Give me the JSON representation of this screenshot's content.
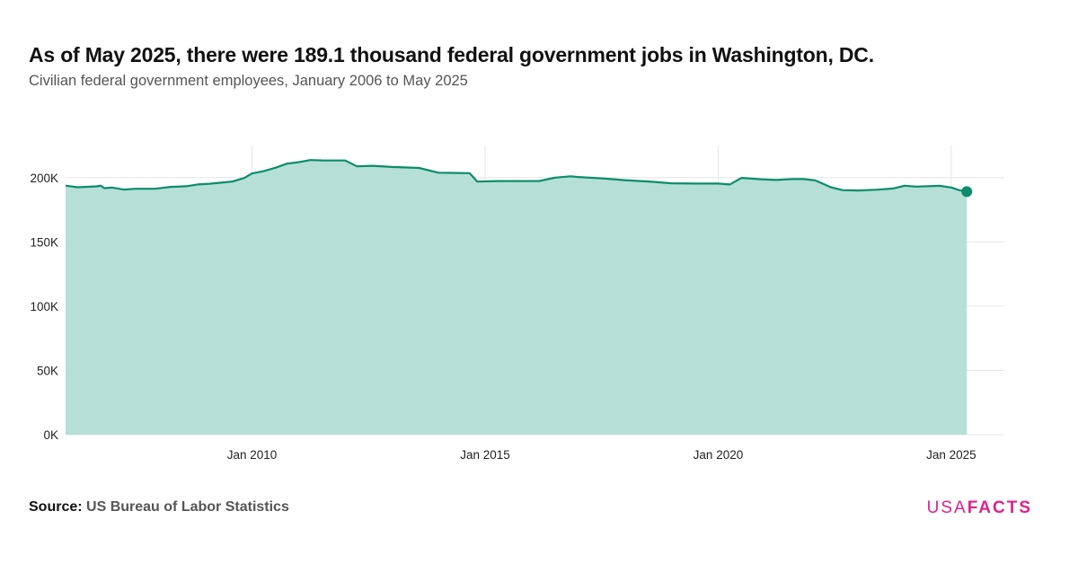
{
  "title": "As of May 2025, there were 189.1 thousand federal government jobs in Washington, DC.",
  "subtitle": "Civilian federal government employees, January 2006 to May 2025",
  "source": {
    "label": "Source:",
    "text": "US Bureau of Labor Statistics"
  },
  "logo": {
    "part1": "USA",
    "part2": "FACTS"
  },
  "colors": {
    "line": "#0b8c6b",
    "fill": "#b2ded4",
    "grid": "#e6e6e6",
    "logo": "#e0218a"
  },
  "chart_data": {
    "type": "area",
    "title": "As of May 2025, there were 189.1 thousand federal government jobs in Washington, DC.",
    "subtitle": "Civilian federal government employees, January 2006 to May 2025",
    "xlabel": "",
    "ylabel": "",
    "x_range": [
      "2006-01",
      "2025-05"
    ],
    "ylim": [
      0,
      225000
    ],
    "y_ticks": [
      0,
      50000,
      100000,
      150000,
      200000
    ],
    "y_tick_labels": [
      "0K",
      "50K",
      "100K",
      "150K",
      "200K"
    ],
    "x_ticks": [
      "2010-01",
      "2015-01",
      "2020-01",
      "2025-01"
    ],
    "x_tick_labels": [
      "Jan 2010",
      "Jan 2015",
      "Jan 2020",
      "Jan 2025"
    ],
    "grid": true,
    "highlight_last_point": true,
    "series": [
      {
        "points": [
          [
            "2006-01",
            193800
          ],
          [
            "2006-04",
            192500
          ],
          [
            "2006-09",
            193200
          ],
          [
            "2006-10",
            193800
          ],
          [
            "2006-11",
            191800
          ],
          [
            "2007-01",
            192200
          ],
          [
            "2007-04",
            190700
          ],
          [
            "2007-07",
            191300
          ],
          [
            "2007-12",
            191300
          ],
          [
            "2008-04",
            192800
          ],
          [
            "2008-08",
            193300
          ],
          [
            "2008-11",
            194700
          ],
          [
            "2009-02",
            195200
          ],
          [
            "2009-08",
            197000
          ],
          [
            "2009-11",
            199700
          ],
          [
            "2010-01",
            203300
          ],
          [
            "2010-04",
            205000
          ],
          [
            "2010-07",
            207700
          ],
          [
            "2010-10",
            210900
          ],
          [
            "2011-01",
            212000
          ],
          [
            "2011-04",
            213700
          ],
          [
            "2011-07",
            213400
          ],
          [
            "2011-11",
            213300
          ],
          [
            "2012-01",
            213300
          ],
          [
            "2012-04",
            208800
          ],
          [
            "2012-08",
            209200
          ],
          [
            "2013-01",
            208300
          ],
          [
            "2013-08",
            207500
          ],
          [
            "2014-01",
            203800
          ],
          [
            "2014-09",
            203500
          ],
          [
            "2014-11",
            196900
          ],
          [
            "2015-04",
            197300
          ],
          [
            "2016-03",
            197400
          ],
          [
            "2016-07",
            200000
          ],
          [
            "2016-11",
            201000
          ],
          [
            "2017-01",
            200500
          ],
          [
            "2017-08",
            199200
          ],
          [
            "2018-01",
            198000
          ],
          [
            "2018-08",
            196800
          ],
          [
            "2019-01",
            195600
          ],
          [
            "2019-07",
            195400
          ],
          [
            "2020-01",
            195400
          ],
          [
            "2020-04",
            194700
          ],
          [
            "2020-07",
            199800
          ],
          [
            "2020-12",
            198700
          ],
          [
            "2021-04",
            198200
          ],
          [
            "2021-08",
            198900
          ],
          [
            "2021-11",
            198900
          ],
          [
            "2022-02",
            197800
          ],
          [
            "2022-06",
            192500
          ],
          [
            "2022-09",
            190300
          ],
          [
            "2023-01",
            190000
          ],
          [
            "2023-06",
            190600
          ],
          [
            "2023-10",
            191500
          ],
          [
            "2024-01",
            193700
          ],
          [
            "2024-04",
            193000
          ],
          [
            "2024-10",
            193600
          ],
          [
            "2025-01",
            192300
          ],
          [
            "2025-03",
            190300
          ],
          [
            "2025-05",
            189100
          ]
        ]
      }
    ]
  }
}
